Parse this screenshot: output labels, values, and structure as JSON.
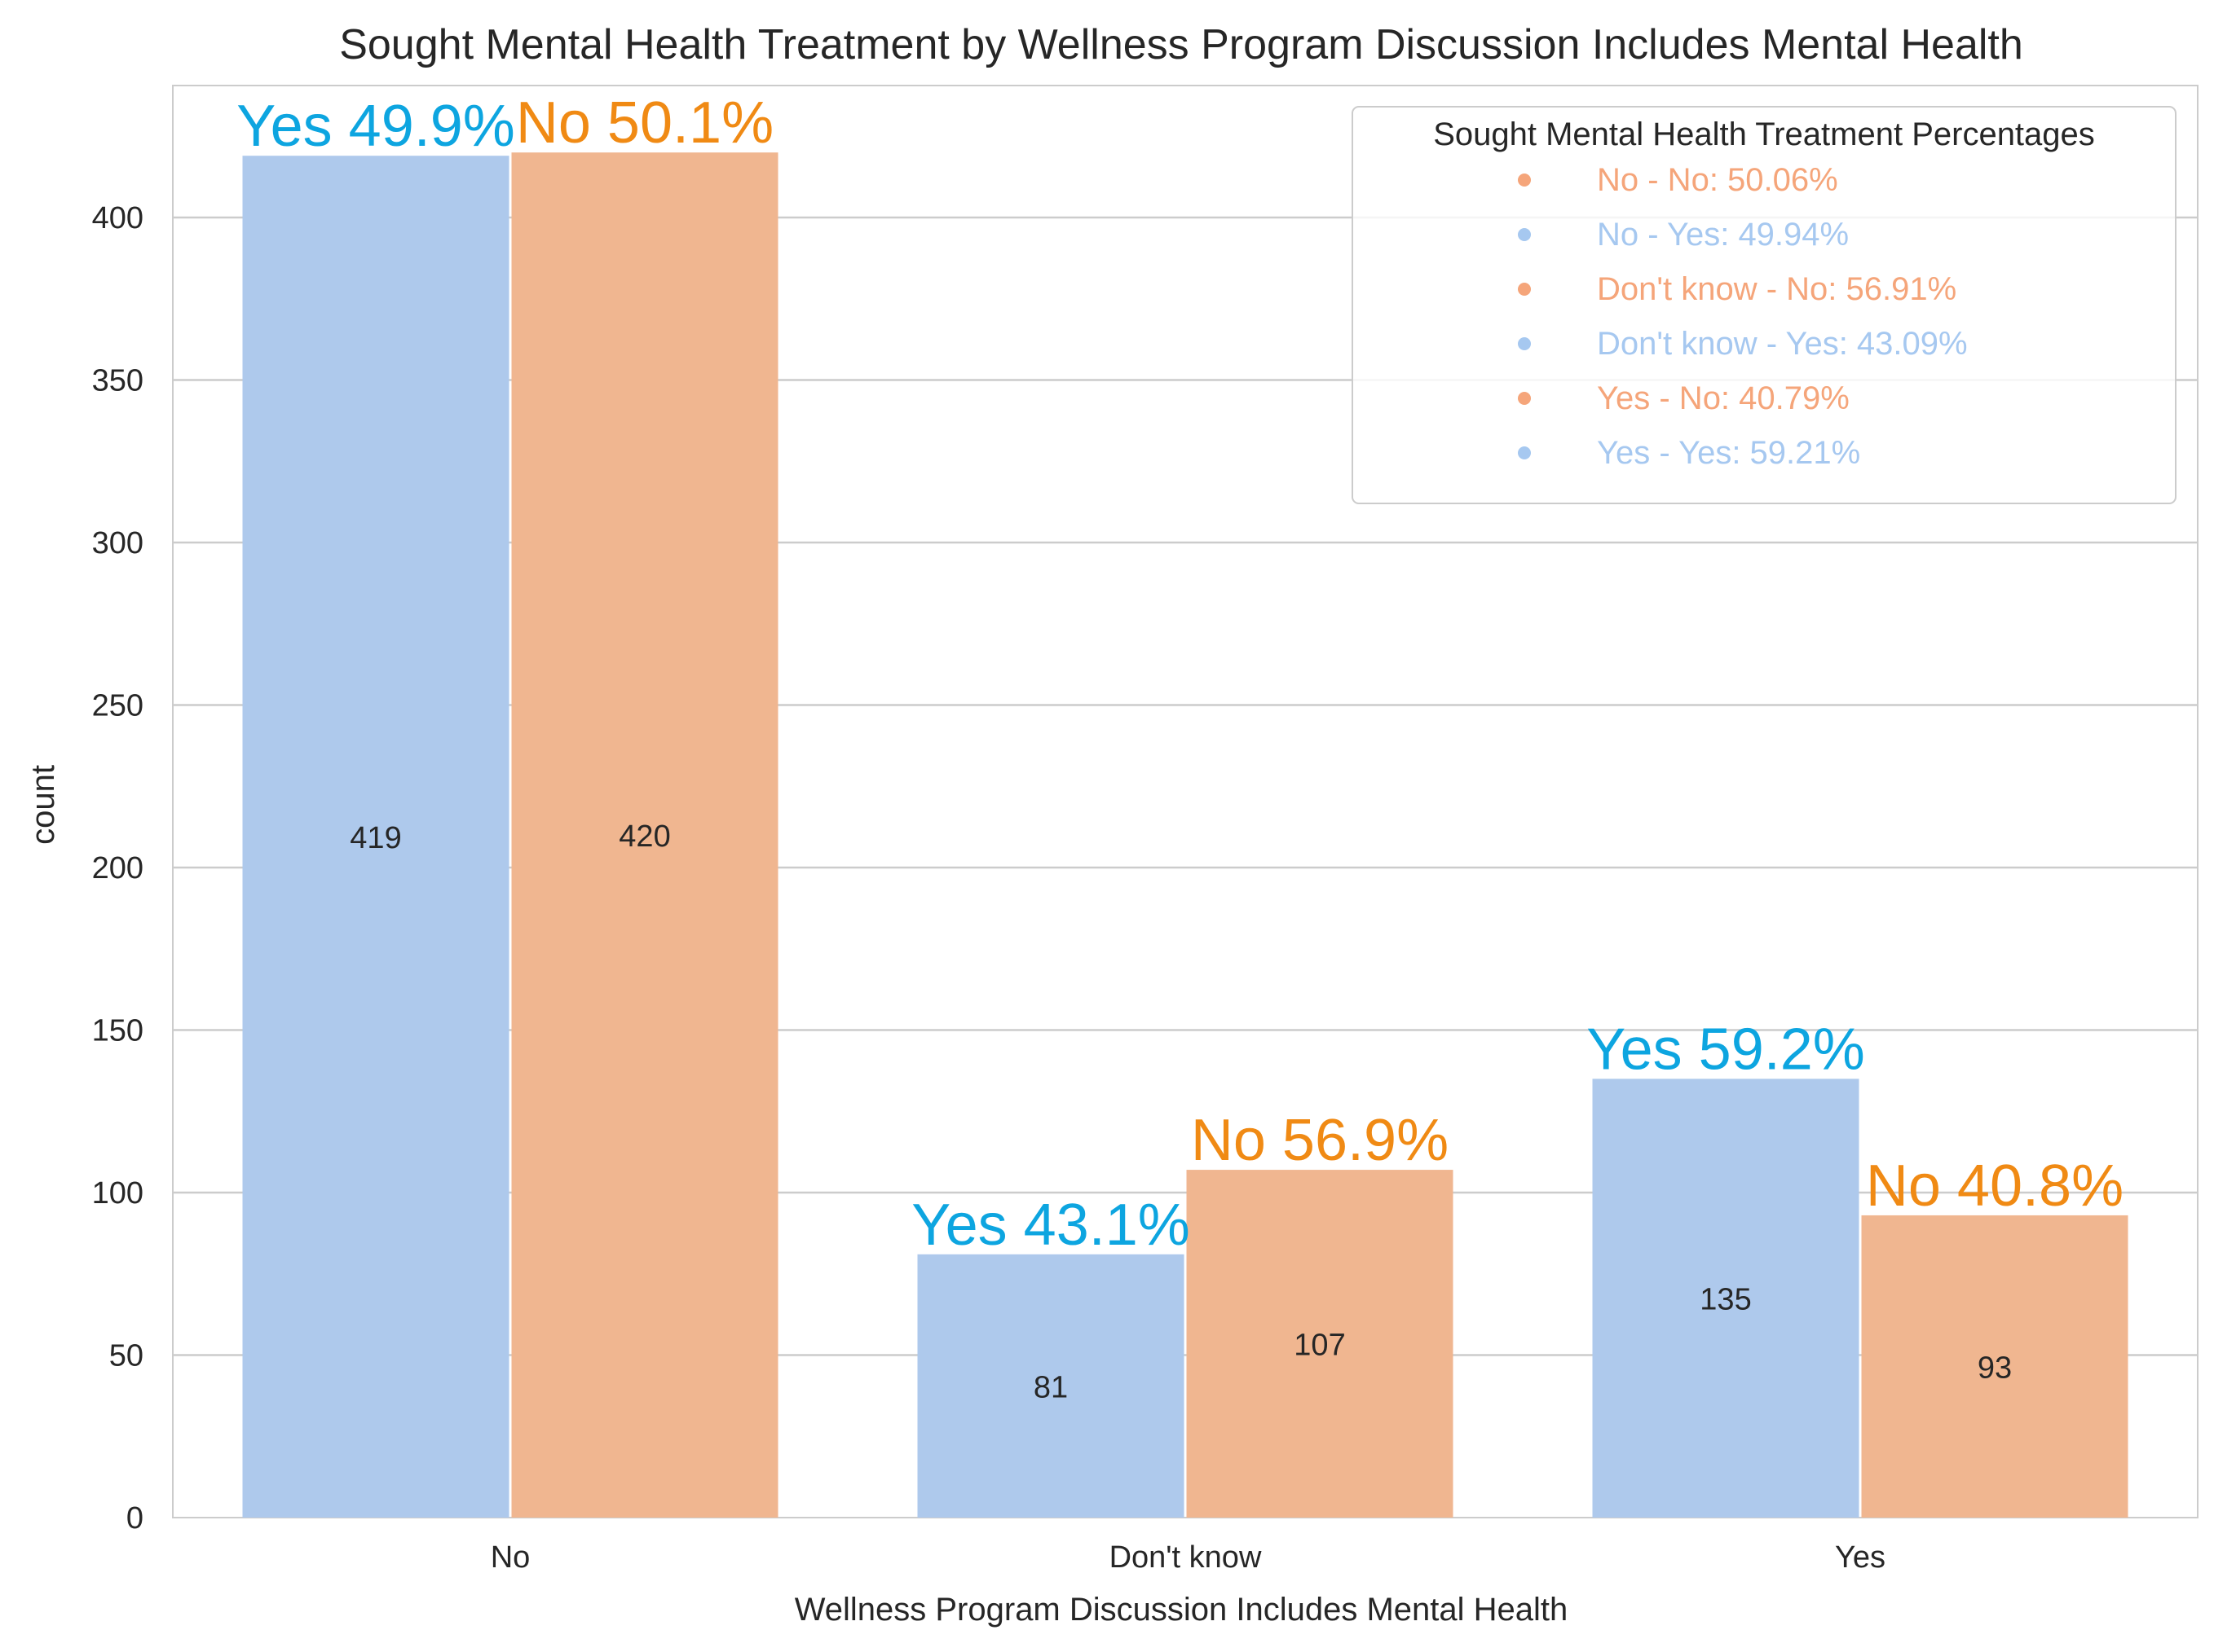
{
  "chart_data": {
    "type": "bar",
    "title": "Sought Mental Health Treatment by Wellness Program Discussion Includes Mental Health",
    "xlabel": "Wellness Program Discussion Includes Mental Health",
    "ylabel": "count",
    "ylim": [
      0,
      420
    ],
    "yticks": [
      "0",
      "50",
      "100",
      "150",
      "200",
      "250",
      "300",
      "350",
      "400"
    ],
    "grid": true,
    "categories": [
      "No",
      "Don't know",
      "Yes"
    ],
    "series": [
      {
        "name": "Yes",
        "color": "#aec9ec",
        "label_color": "#0da5e0",
        "values": [
          419,
          81,
          135
        ],
        "value_labels": [
          "419",
          "81",
          "135"
        ],
        "percent_labels": [
          "Yes 49.9%",
          "Yes 43.1%",
          "Yes 59.2%"
        ]
      },
      {
        "name": "No",
        "color": "#f0b690",
        "label_color": "#f08a14",
        "values": [
          420,
          107,
          93
        ],
        "value_labels": [
          "420",
          "107",
          "93"
        ],
        "percent_labels": [
          "No 50.1%",
          "No 56.9%",
          "No 40.8%"
        ]
      }
    ],
    "legend": {
      "title": "Sought Mental Health Treatment Percentages",
      "placement": "top-right",
      "entries": [
        {
          "label": "No - No: 50.06%",
          "color": "#f5a57a"
        },
        {
          "label": "No - Yes: 49.94%",
          "color": "#a6c8f0"
        },
        {
          "label": "Don't know - No: 56.91%",
          "color": "#f5a57a"
        },
        {
          "label": "Don't know - Yes: 43.09%",
          "color": "#a6c8f0"
        },
        {
          "label": "Yes - No: 40.79%",
          "color": "#f5a57a"
        },
        {
          "label": "Yes - Yes: 59.21%",
          "color": "#a6c8f0"
        }
      ]
    }
  }
}
